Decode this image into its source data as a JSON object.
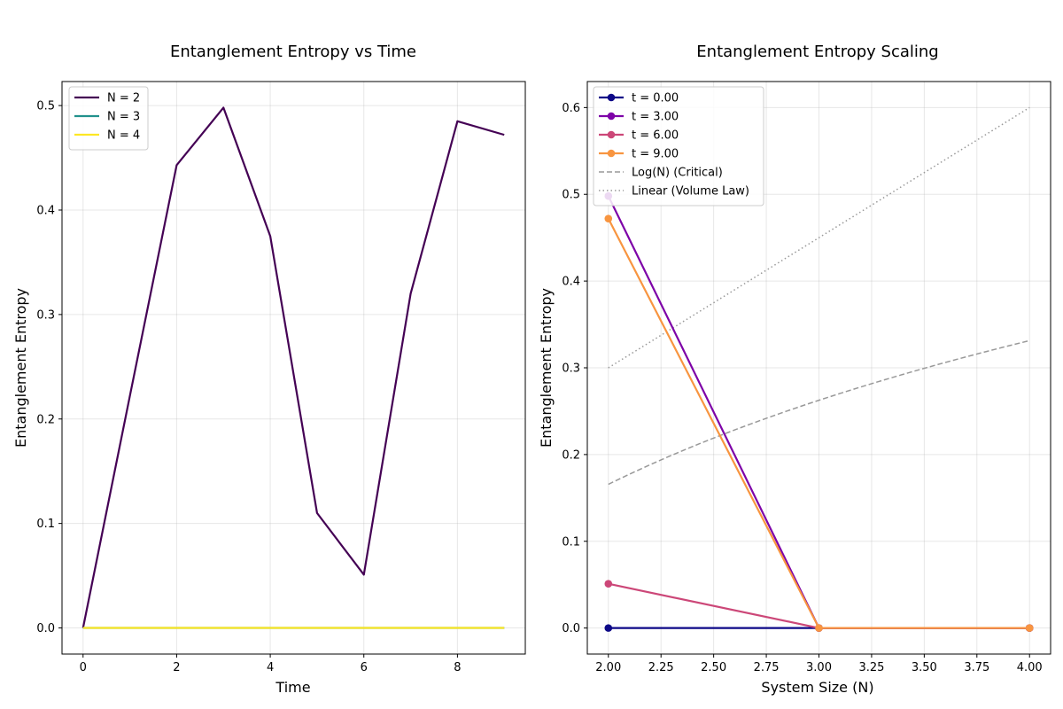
{
  "chart_data": [
    {
      "type": "line",
      "title": "Entanglement Entropy vs Time",
      "xlabel": "Time",
      "ylabel": "Entanglement Entropy",
      "xlim": [
        -0.45,
        9.45
      ],
      "ylim": [
        -0.025,
        0.523
      ],
      "xticks": [
        0,
        2,
        4,
        6,
        8
      ],
      "xtick_labels": [
        "0",
        "2",
        "4",
        "6",
        "8"
      ],
      "yticks": [
        0.0,
        0.1,
        0.2,
        0.3,
        0.4,
        0.5
      ],
      "ytick_labels": [
        "0.0",
        "0.1",
        "0.2",
        "0.3",
        "0.4",
        "0.5"
      ],
      "grid": true,
      "legend_position": "upper-left",
      "x": [
        0,
        1,
        2,
        3,
        4,
        5,
        6,
        7,
        8,
        9
      ],
      "series": [
        {
          "name": "N = 2",
          "color": "#440154",
          "values": [
            0.0,
            0.222,
            0.443,
            0.498,
            0.375,
            0.11,
            0.051,
            0.32,
            0.485,
            0.472
          ]
        },
        {
          "name": "N = 3",
          "color": "#21918c",
          "values": [
            0,
            0,
            0,
            0,
            0,
            0,
            0,
            0,
            0,
            0
          ]
        },
        {
          "name": "N = 4",
          "color": "#fde725",
          "values": [
            0,
            0,
            0,
            0,
            0,
            0,
            0,
            0,
            0,
            0
          ]
        }
      ]
    },
    {
      "type": "line",
      "title": "Entanglement Entropy Scaling",
      "xlabel": "System Size (N)",
      "ylabel": "Entanglement Entropy",
      "xlim": [
        1.9,
        4.1
      ],
      "ylim": [
        -0.03,
        0.63
      ],
      "xticks": [
        2.0,
        2.25,
        2.5,
        2.75,
        3.0,
        3.25,
        3.5,
        3.75,
        4.0
      ],
      "xtick_labels": [
        "2.00",
        "2.25",
        "2.50",
        "2.75",
        "3.00",
        "3.25",
        "3.50",
        "3.75",
        "4.00"
      ],
      "yticks": [
        0.0,
        0.1,
        0.2,
        0.3,
        0.4,
        0.5,
        0.6
      ],
      "ytick_labels": [
        "0.0",
        "0.1",
        "0.2",
        "0.3",
        "0.4",
        "0.5",
        "0.6"
      ],
      "grid": true,
      "legend_position": "upper-left",
      "x": [
        2,
        3,
        4
      ],
      "series": [
        {
          "name": "t = 0.00",
          "color": "#0d0887",
          "markers": true,
          "values": [
            0.0,
            0.0,
            0.0
          ]
        },
        {
          "name": "t = 3.00",
          "color": "#7e03a8",
          "markers": true,
          "values": [
            0.498,
            0.0,
            0.0
          ]
        },
        {
          "name": "t = 6.00",
          "color": "#cc4778",
          "markers": true,
          "values": [
            0.051,
            0.0,
            0.0
          ]
        },
        {
          "name": "t = 9.00",
          "color": "#f89540",
          "markers": true,
          "values": [
            0.472,
            0.0,
            0.0
          ]
        }
      ],
      "reference_curves": [
        {
          "name": "Log(N) (Critical)",
          "color": "#999999",
          "style": "dashed",
          "function": "log",
          "coefficient": 0.239,
          "x_range": [
            2,
            4
          ]
        },
        {
          "name": "Linear (Volume Law)",
          "color": "#999999",
          "style": "dotted",
          "function": "linear",
          "coefficient": 0.15,
          "x_range": [
            2,
            4
          ]
        }
      ]
    }
  ]
}
